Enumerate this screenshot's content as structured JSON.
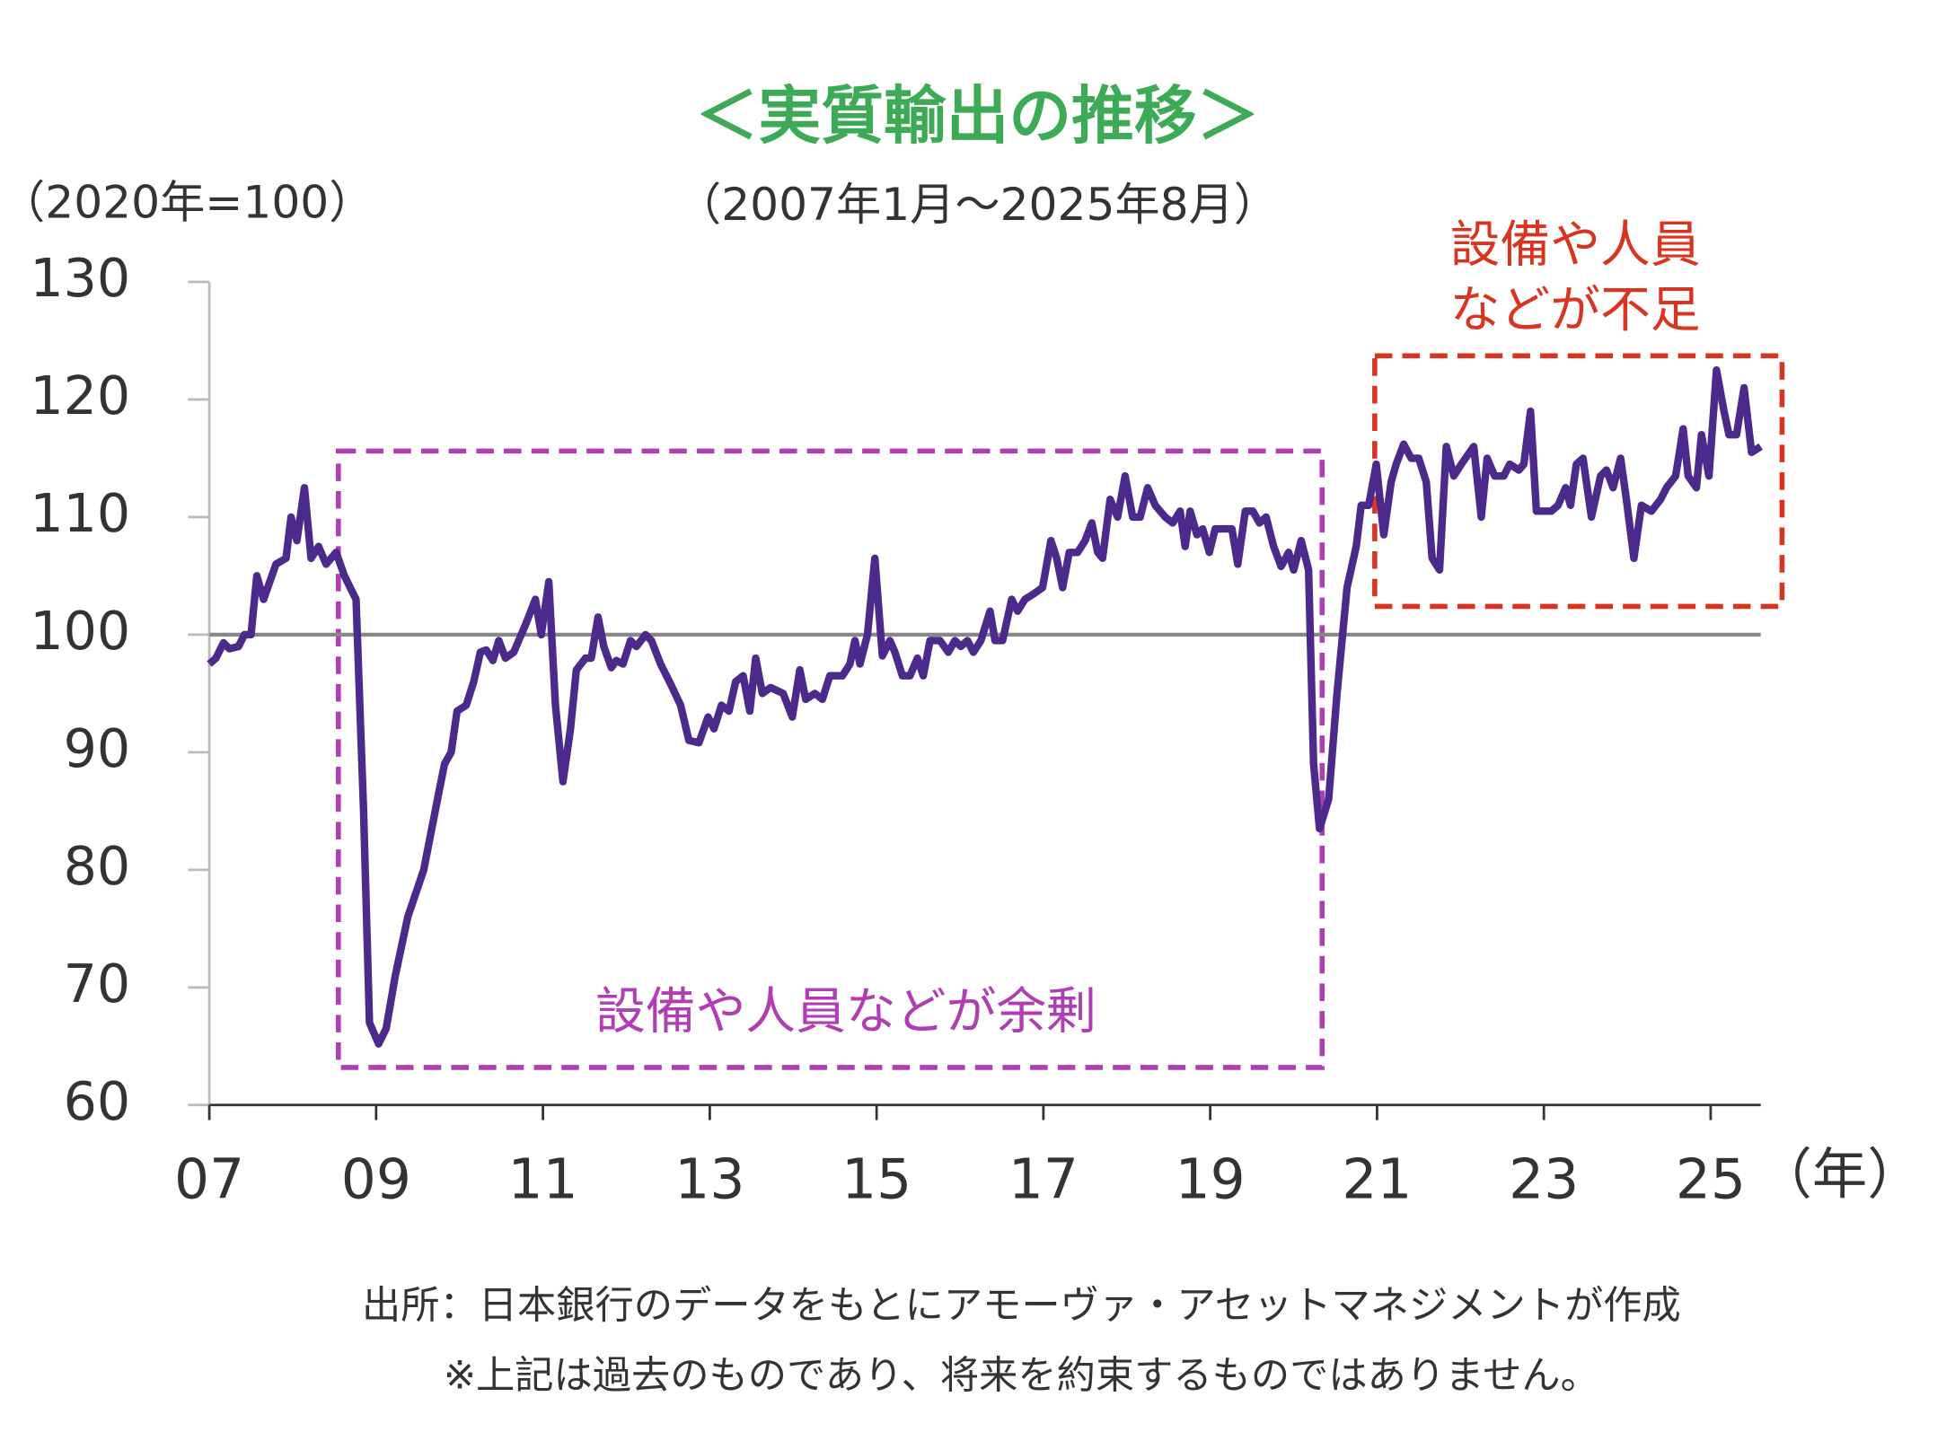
{
  "chart_data": {
    "type": "line",
    "title": "＜実質輸出の推移＞",
    "subtitle": "（2007年1月～2025年8月）",
    "y_axis_label": "（2020年=100）",
    "x_axis_label": "（年）",
    "annotations": [
      "設備や人員などが余剰",
      "設備や人員\nなどが不足"
    ],
    "notes": [
      "出所：日本銀行のデータをもとにアモーヴァ・アセットマネジメントが作成",
      "※上記は過去のものであり、将来を約束するものではありません。"
    ],
    "reference_line": 100,
    "xlim": [
      2007,
      2025.6
    ],
    "xticks": [
      {
        "value": 2007,
        "label": "07"
      },
      {
        "value": 2009,
        "label": "09"
      },
      {
        "value": 2011,
        "label": "11"
      },
      {
        "value": 2013,
        "label": "13"
      },
      {
        "value": 2015,
        "label": "15"
      },
      {
        "value": 2017,
        "label": "17"
      },
      {
        "value": 2019,
        "label": "19"
      },
      {
        "value": 2021,
        "label": "21"
      },
      {
        "value": 2023,
        "label": "23"
      },
      {
        "value": 2025,
        "label": "25"
      }
    ],
    "ylim": [
      60,
      130
    ],
    "yticks": [
      60,
      70,
      80,
      90,
      100,
      110,
      120,
      130
    ],
    "color": "#4b2a8c",
    "x": [
      2007.0,
      2007.08,
      2007.17,
      2007.24,
      2007.35,
      2007.42,
      2007.5,
      2007.57,
      2007.65,
      2007.8,
      2007.92,
      2007.98,
      2008.05,
      2008.14,
      2008.22,
      2008.31,
      2008.4,
      2008.52,
      2008.62,
      2008.76,
      2008.85,
      2008.92,
      2009.03,
      2009.12,
      2009.23,
      2009.38,
      2009.57,
      2009.75,
      2009.82,
      2009.9,
      2009.97,
      2010.08,
      2010.17,
      2010.25,
      2010.32,
      2010.4,
      2010.47,
      2010.55,
      2010.65,
      2010.8,
      2010.91,
      2010.98,
      2011.07,
      2011.15,
      2011.24,
      2011.33,
      2011.4,
      2011.51,
      2011.58,
      2011.66,
      2011.73,
      2011.82,
      2011.88,
      2011.96,
      2012.05,
      2012.12,
      2012.23,
      2012.3,
      2012.41,
      2012.53,
      2012.65,
      2012.75,
      2012.87,
      2012.98,
      2013.05,
      2013.14,
      2013.23,
      2013.31,
      2013.4,
      2013.48,
      2013.55,
      2013.63,
      2013.73,
      2013.88,
      2013.99,
      2014.08,
      2014.15,
      2014.26,
      2014.35,
      2014.44,
      2014.59,
      2014.68,
      2014.74,
      2014.8,
      2014.89,
      2014.98,
      2015.07,
      2015.16,
      2015.22,
      2015.31,
      2015.4,
      2015.49,
      2015.56,
      2015.64,
      2015.76,
      2015.86,
      2015.94,
      2016.01,
      2016.09,
      2016.16,
      2016.25,
      2016.36,
      2016.42,
      2016.51,
      2016.62,
      2016.69,
      2016.78,
      2016.89,
      2016.99,
      2017.09,
      2017.16,
      2017.23,
      2017.31,
      2017.41,
      2017.5,
      2017.58,
      2017.65,
      2017.71,
      2017.8,
      2017.89,
      2017.98,
      2018.07,
      2018.16,
      2018.25,
      2018.34,
      2018.46,
      2018.55,
      2018.64,
      2018.7,
      2018.76,
      2018.84,
      2018.91,
      2018.99,
      2019.06,
      2019.17,
      2019.26,
      2019.33,
      2019.42,
      2019.51,
      2019.59,
      2019.67,
      2019.76,
      2019.85,
      2019.94,
      2020.0,
      2020.09,
      2020.18,
      2020.24,
      2020.31,
      2020.42,
      2020.52,
      2020.64,
      2020.75,
      2020.81,
      2020.9,
      2020.99,
      2021.08,
      2021.17,
      2021.23,
      2021.32,
      2021.41,
      2021.5,
      2021.59,
      2021.66,
      2021.75,
      2021.83,
      2021.92,
      2022.01,
      2022.16,
      2022.25,
      2022.32,
      2022.41,
      2022.52,
      2022.59,
      2022.7,
      2022.76,
      2022.84,
      2022.91,
      2023.0,
      2023.09,
      2023.17,
      2023.26,
      2023.32,
      2023.39,
      2023.47,
      2023.57,
      2023.68,
      2023.75,
      2023.83,
      2023.92,
      2023.99,
      2024.08,
      2024.17,
      2024.29,
      2024.4,
      2024.47,
      2024.58,
      2024.67,
      2024.73,
      2024.83,
      2024.89,
      2024.98,
      2025.07,
      2025.16,
      2025.22,
      2025.31,
      2025.4,
      2025.49,
      2025.6
    ],
    "values": [
      97.5,
      98,
      99.3,
      98.8,
      99,
      100,
      100,
      105,
      103,
      106,
      106.5,
      110,
      108,
      112.5,
      106.5,
      107.5,
      106,
      107,
      105,
      103,
      85,
      67,
      65.2,
      66.5,
      71,
      76,
      80,
      86.5,
      89,
      90,
      93.5,
      94,
      96,
      98.5,
      98.7,
      97.8,
      99.5,
      98,
      98.5,
      101,
      103,
      100,
      104.5,
      94,
      87.5,
      92,
      97,
      98,
      98,
      101.5,
      99,
      97.2,
      97.8,
      97.5,
      99.5,
      99,
      100,
      99.5,
      97.5,
      95.8,
      94,
      91,
      90.8,
      93,
      92,
      94,
      93.5,
      96,
      96.5,
      93.5,
      98,
      95,
      95.5,
      95,
      93,
      97,
      94.5,
      95,
      94.5,
      96.5,
      96.5,
      97.5,
      99.5,
      97.5,
      100,
      106.5,
      98.2,
      99.5,
      98.5,
      96.5,
      96.5,
      98,
      96.5,
      99.5,
      99.5,
      98.5,
      99.5,
      99,
      99.5,
      98.5,
      99.5,
      102,
      99.5,
      99.5,
      103,
      102,
      103,
      103.5,
      104,
      108,
      106.5,
      104,
      107,
      107,
      108,
      109.5,
      107,
      106.5,
      111.5,
      110,
      113.5,
      110,
      110,
      112.5,
      111,
      110,
      109.5,
      110.5,
      107.5,
      110.5,
      108.5,
      109,
      107,
      109,
      109,
      109,
      106,
      110.5,
      110.5,
      109.5,
      110,
      107.5,
      105.8,
      107,
      105.5,
      108,
      105.5,
      89,
      83.5,
      86,
      95,
      104,
      107.5,
      111,
      111,
      114.5,
      108.5,
      113,
      114.5,
      116.2,
      115,
      115,
      113,
      106.5,
      105.5,
      116,
      113.5,
      114.5,
      116,
      110,
      115,
      113.5,
      113.5,
      114.5,
      114,
      114.5,
      119,
      110.5,
      110.5,
      110.5,
      111,
      112.5,
      111,
      114.5,
      115,
      110,
      113.5,
      114,
      112.5,
      115,
      111.5,
      106.5,
      111,
      110.5,
      111.5,
      112.5,
      113.5,
      117.5,
      113.5,
      112.5,
      117,
      113.5,
      122.5,
      119,
      117,
      117,
      121,
      115.5,
      116
    ]
  }
}
